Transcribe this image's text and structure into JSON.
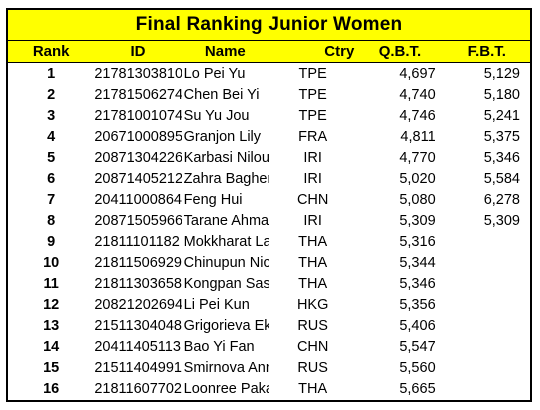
{
  "title": "Final Ranking Junior Women",
  "colors": {
    "header_fill": "#ffff00",
    "border": "#000000"
  },
  "headers": {
    "rank": "Rank",
    "id": "ID",
    "name": "Name",
    "ctry": "Ctry",
    "qbt": "Q.B.T.",
    "fbt": "F.B.T."
  },
  "rows": [
    {
      "rank": "1",
      "id": "21781303810",
      "name": "Lo Pei Yu",
      "ctry": "TPE",
      "qbt": "4,697",
      "fbt": "5,129"
    },
    {
      "rank": "2",
      "id": "21781506274",
      "name": "Chen Bei Yi",
      "ctry": "TPE",
      "qbt": "4,740",
      "fbt": "5,180"
    },
    {
      "rank": "3",
      "id": "21781001074",
      "name": "Su Yu Jou",
      "ctry": "TPE",
      "qbt": "4,746",
      "fbt": "5,241"
    },
    {
      "rank": "4",
      "id": "20671000895",
      "name": "Granjon Lily",
      "ctry": "FRA",
      "qbt": "4,811",
      "fbt": "5,375"
    },
    {
      "rank": "5",
      "id": "20871304226",
      "name": "Karbasi Niloufar",
      "ctry": "IRI",
      "qbt": "4,770",
      "fbt": "5,346"
    },
    {
      "rank": "6",
      "id": "20871405212",
      "name": "Zahra Bagherzadeh Najafabadi",
      "ctry": "IRI",
      "qbt": "5,020",
      "fbt": "5,584"
    },
    {
      "rank": "7",
      "id": "20411000864",
      "name": "Feng Hui",
      "ctry": "CHN",
      "qbt": "5,080",
      "fbt": "6,278"
    },
    {
      "rank": "8",
      "id": "20871505966",
      "name": "Tarane Ahmadi",
      "ctry": "IRI",
      "qbt": "5,309",
      "fbt": "5,309"
    },
    {
      "rank": "9",
      "id": "21811101182",
      "name": "Mokkharat Lalida",
      "ctry": "THA",
      "qbt": "5,316",
      "fbt": ""
    },
    {
      "rank": "10",
      "id": "21811506929",
      "name": "Chinupun Nichakan",
      "ctry": "THA",
      "qbt": "5,344",
      "fbt": ""
    },
    {
      "rank": "11",
      "id": "21811303658",
      "name": "Kongpan Sasikan",
      "ctry": "THA",
      "qbt": "5,346",
      "fbt": ""
    },
    {
      "rank": "12",
      "id": "20821202694",
      "name": "Li Pei Kun",
      "ctry": "HKG",
      "qbt": "5,356",
      "fbt": ""
    },
    {
      "rank": "13",
      "id": "21511304048",
      "name": "Grigorieva Ekaterina",
      "ctry": "RUS",
      "qbt": "5,406",
      "fbt": ""
    },
    {
      "rank": "14",
      "id": "20411405113",
      "name": "Bao Yi Fan",
      "ctry": "CHN",
      "qbt": "5,547",
      "fbt": ""
    },
    {
      "rank": "15",
      "id": "21511404991",
      "name": "Smirnova Anna",
      "ctry": "RUS",
      "qbt": "5,560",
      "fbt": ""
    },
    {
      "rank": "16",
      "id": "21811607702",
      "name": "Loonree Pakaporn",
      "ctry": "THA",
      "qbt": "5,665",
      "fbt": ""
    }
  ]
}
